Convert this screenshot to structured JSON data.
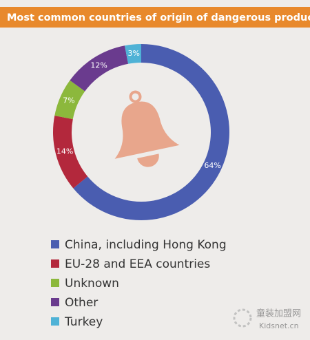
{
  "chart_data": {
    "type": "donut",
    "title": "Most common countries of origin of dangerous products",
    "categories": [
      "China, including Hong Kong",
      "EU-28 and EEA countries",
      "Unknown",
      "Other",
      "Turkey"
    ],
    "values": [
      64,
      14,
      7,
      12,
      3
    ],
    "value_labels": [
      "64%",
      "14%",
      "7%",
      "12%",
      "3%"
    ],
    "colors": [
      "#4a5db0",
      "#b3283c",
      "#8cb83c",
      "#6a3b8e",
      "#4fb2d6"
    ]
  },
  "watermark": {
    "text": "童装加盟网",
    "site": "Kidsnet.cn"
  }
}
